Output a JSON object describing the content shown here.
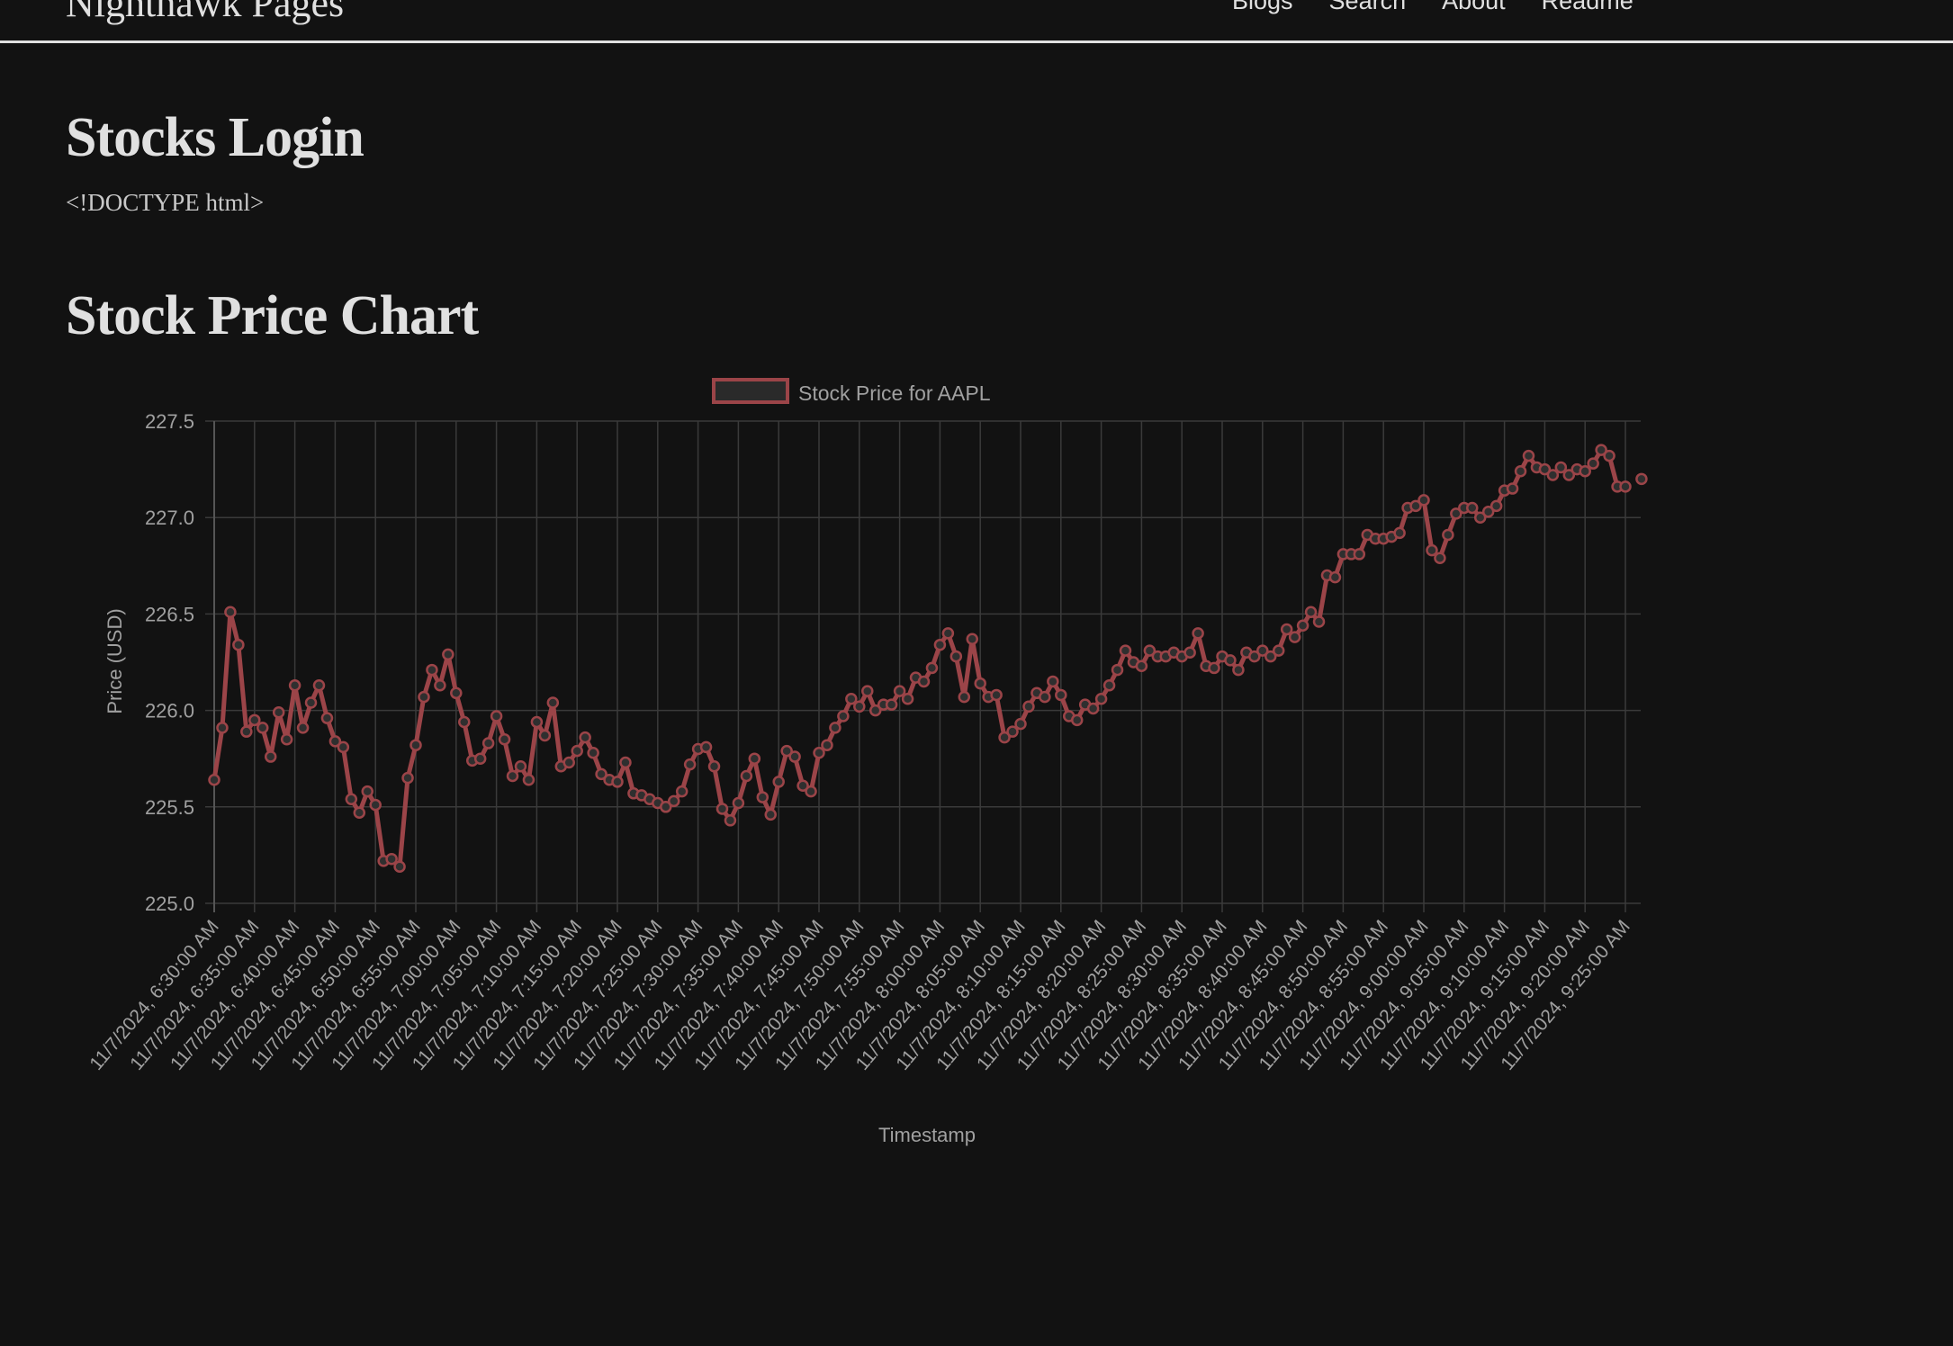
{
  "header": {
    "site_title": "Nighthawk Pages",
    "nav": [
      {
        "label": "Blogs"
      },
      {
        "label": "Search"
      },
      {
        "label": "About"
      },
      {
        "label": "Readme"
      }
    ]
  },
  "main": {
    "page_title": "Stocks Login",
    "doctype_text": "<!DOCTYPE html>",
    "chart_heading": "Stock Price Chart"
  },
  "colors": {
    "background": "#121212",
    "text": "#e0e0e0",
    "line": "#9b4448",
    "grid": "#3a3a3a",
    "tick_text": "#a0a0a0"
  },
  "chart_data": {
    "type": "line",
    "title": "",
    "legend": [
      "Stock Price for AAPL"
    ],
    "legend_position": "top",
    "xlabel": "Timestamp",
    "ylabel": "Price (USD)",
    "ylim": [
      225.0,
      227.5
    ],
    "yticks": [
      "225.0",
      "225.5",
      "226.0",
      "226.5",
      "227.0",
      "227.5"
    ],
    "grid": true,
    "xtick_labels": [
      "11/7/2024, 6:30:00 AM",
      "11/7/2024, 6:35:00 AM",
      "11/7/2024, 6:40:00 AM",
      "11/7/2024, 6:45:00 AM",
      "11/7/2024, 6:50:00 AM",
      "11/7/2024, 6:55:00 AM",
      "11/7/2024, 7:00:00 AM",
      "11/7/2024, 7:05:00 AM",
      "11/7/2024, 7:10:00 AM",
      "11/7/2024, 7:15:00 AM",
      "11/7/2024, 7:20:00 AM",
      "11/7/2024, 7:25:00 AM",
      "11/7/2024, 7:30:00 AM",
      "11/7/2024, 7:35:00 AM",
      "11/7/2024, 7:40:00 AM",
      "11/7/2024, 7:45:00 AM",
      "11/7/2024, 7:50:00 AM",
      "11/7/2024, 7:55:00 AM",
      "11/7/2024, 8:00:00 AM",
      "11/7/2024, 8:05:00 AM",
      "11/7/2024, 8:10:00 AM",
      "11/7/2024, 8:15:00 AM",
      "11/7/2024, 8:20:00 AM",
      "11/7/2024, 8:25:00 AM",
      "11/7/2024, 8:30:00 AM",
      "11/7/2024, 8:35:00 AM",
      "11/7/2024, 8:40:00 AM",
      "11/7/2024, 8:45:00 AM",
      "11/7/2024, 8:50:00 AM",
      "11/7/2024, 8:55:00 AM",
      "11/7/2024, 9:00:00 AM",
      "11/7/2024, 9:05:00 AM",
      "11/7/2024, 9:10:00 AM",
      "11/7/2024, 9:15:00 AM",
      "11/7/2024, 9:20:00 AM",
      "11/7/2024, 9:25:00 AM"
    ],
    "x_start": "6:30 AM",
    "x_interval_minutes": 1,
    "series": [
      {
        "name": "Stock Price for AAPL",
        "values": [
          225.64,
          225.91,
          226.51,
          226.34,
          225.89,
          225.95,
          225.91,
          225.76,
          225.99,
          225.85,
          226.13,
          225.91,
          226.04,
          226.13,
          225.96,
          225.84,
          225.81,
          225.54,
          225.47,
          225.58,
          225.51,
          225.22,
          225.23,
          225.19,
          225.65,
          225.82,
          226.07,
          226.21,
          226.13,
          226.29,
          226.09,
          225.94,
          225.74,
          225.75,
          225.83,
          225.97,
          225.85,
          225.66,
          225.71,
          225.64,
          225.94,
          225.87,
          226.04,
          225.71,
          225.73,
          225.79,
          225.86,
          225.78,
          225.67,
          225.64,
          225.63,
          225.73,
          225.57,
          225.56,
          225.54,
          225.52,
          225.5,
          225.53,
          225.58,
          225.72,
          225.8,
          225.81,
          225.71,
          225.49,
          225.43,
          225.52,
          225.66,
          225.75,
          225.55,
          225.46,
          225.63,
          225.79,
          225.76,
          225.61,
          225.58,
          225.78,
          225.82,
          225.91,
          225.97,
          226.06,
          226.02,
          226.1,
          226.0,
          226.03,
          226.03,
          226.1,
          226.06,
          226.17,
          226.15,
          226.22,
          226.34,
          226.4,
          226.28,
          226.07,
          226.37,
          226.14,
          226.07,
          226.08,
          225.86,
          225.89,
          225.93,
          226.02,
          226.09,
          226.07,
          226.15,
          226.08,
          225.97,
          225.95,
          226.03,
          226.01,
          226.06,
          226.13,
          226.21,
          226.31,
          226.25,
          226.23,
          226.31,
          226.28,
          226.28,
          226.3,
          226.28,
          226.3,
          226.4,
          226.23,
          226.22,
          226.28,
          226.26,
          226.21,
          226.3,
          226.28,
          226.31,
          226.28,
          226.31,
          226.42,
          226.38,
          226.44,
          226.51,
          226.46,
          226.7,
          226.69,
          226.81,
          226.81,
          226.81,
          226.91,
          226.89,
          226.89,
          226.9,
          226.92,
          227.05,
          227.06,
          227.09,
          226.83,
          226.79,
          226.91,
          227.02,
          227.05,
          227.05,
          227.0,
          227.03,
          227.06,
          227.14,
          227.15,
          227.24,
          227.32,
          227.26,
          227.25,
          227.22,
          227.26,
          227.22,
          227.25,
          227.24,
          227.28,
          227.35,
          227.32,
          227.16,
          227.16,
          null,
          227.2
        ]
      }
    ]
  }
}
